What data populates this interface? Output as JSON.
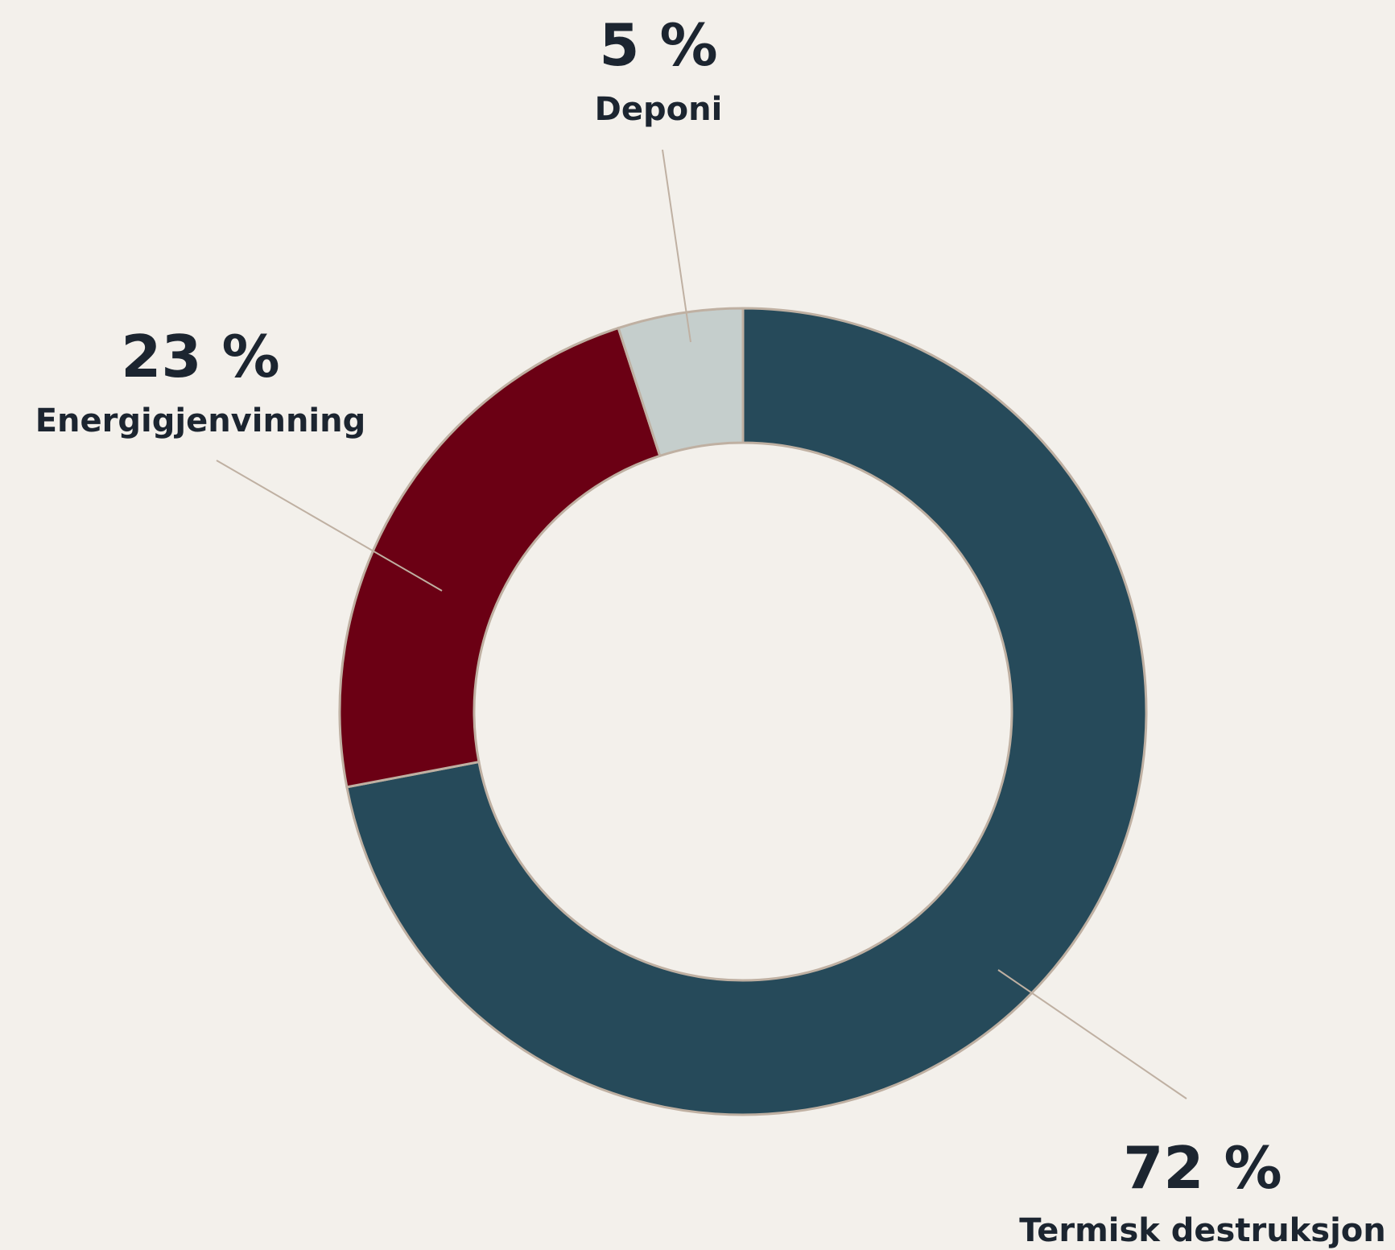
{
  "chart_data": {
    "type": "donut",
    "categories": [
      "Termisk destruksjon",
      "Energigjenvinning",
      "Deponi"
    ],
    "values": [
      72,
      23,
      5
    ],
    "value_labels": [
      "72 %",
      "23 %",
      "5 %"
    ],
    "colors": [
      "#264a5a",
      "#6b0014",
      "#c5cecc"
    ]
  }
}
